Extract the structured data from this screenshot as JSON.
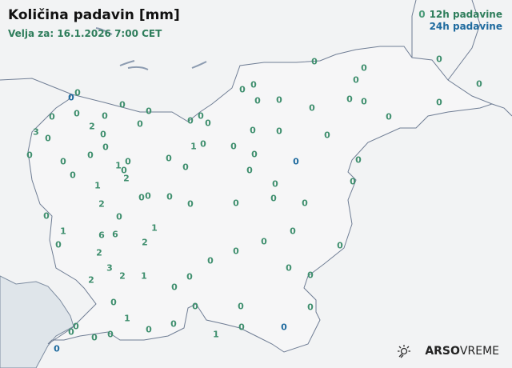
{
  "header": {
    "title": "Količina padavin [mm]",
    "valid_for": "Velja za: 16.1.2026 7:00 CET"
  },
  "legend": {
    "sample_value": "0",
    "item_12h": "12h padavine",
    "item_24h": "24h padavine",
    "color_12h": "#2e7d5b",
    "color_24h": "#1e6a9e"
  },
  "branding": {
    "logo_icon": "sun-cloud-icon",
    "brand_bold": "ARSO",
    "brand_light": "VREME"
  },
  "stations": [
    {
      "v": "0",
      "t": "24h"
    },
    {
      "v": "0",
      "t": "12h"
    },
    {
      "v": "0",
      "t": "12h"
    },
    {
      "v": "0",
      "t": "12h"
    },
    {
      "v": "0",
      "t": "12h"
    },
    {
      "v": "0",
      "t": "12h"
    },
    {
      "v": "3",
      "t": "12h"
    },
    {
      "v": "0",
      "t": "12h"
    },
    {
      "v": "2",
      "t": "12h"
    },
    {
      "v": "0",
      "t": "12h"
    },
    {
      "v": "0",
      "t": "12h"
    },
    {
      "v": "0",
      "t": "12h"
    },
    {
      "v": "0",
      "t": "12h"
    },
    {
      "v": "0",
      "t": "12h"
    },
    {
      "v": "0",
      "t": "12h"
    },
    {
      "v": "1",
      "t": "12h"
    },
    {
      "v": "0",
      "t": "12h"
    },
    {
      "v": "0",
      "t": "12h"
    },
    {
      "v": "2",
      "t": "12h"
    },
    {
      "v": "1",
      "t": "12h"
    },
    {
      "v": "0",
      "t": "12h"
    },
    {
      "v": "0",
      "t": "12h"
    },
    {
      "v": "0",
      "t": "12h"
    },
    {
      "v": "0",
      "t": "12h"
    },
    {
      "v": "0",
      "t": "12h"
    },
    {
      "v": "1",
      "t": "12h"
    },
    {
      "v": "0",
      "t": "12h"
    },
    {
      "v": "0",
      "t": "12h"
    },
    {
      "v": "0",
      "t": "12h"
    },
    {
      "v": "2",
      "t": "12h"
    },
    {
      "v": "0",
      "t": "12h"
    },
    {
      "v": "0",
      "t": "12h"
    },
    {
      "v": "0",
      "t": "12h"
    },
    {
      "v": "0",
      "t": "12h"
    },
    {
      "v": "0",
      "t": "12h"
    },
    {
      "v": "0",
      "t": "12h"
    },
    {
      "v": "1",
      "t": "12h"
    },
    {
      "v": "0",
      "t": "12h"
    },
    {
      "v": "6",
      "t": "12h"
    },
    {
      "v": "6",
      "t": "12h"
    },
    {
      "v": "1",
      "t": "12h"
    },
    {
      "v": "2",
      "t": "12h"
    },
    {
      "v": "2",
      "t": "12h"
    },
    {
      "v": "3",
      "t": "12h"
    },
    {
      "v": "2",
      "t": "12h"
    },
    {
      "v": "2",
      "t": "12h"
    },
    {
      "v": "1",
      "t": "12h"
    },
    {
      "v": "0",
      "t": "12h"
    },
    {
      "v": "0",
      "t": "12h"
    },
    {
      "v": "0",
      "t": "12h"
    },
    {
      "v": "0",
      "t": "12h"
    },
    {
      "v": "0",
      "t": "12h"
    },
    {
      "v": "0",
      "t": "12h"
    },
    {
      "v": "1",
      "t": "12h"
    },
    {
      "v": "0",
      "t": "12h"
    },
    {
      "v": "0",
      "t": "12h"
    },
    {
      "v": "0",
      "t": "12h"
    },
    {
      "v": "0",
      "t": "12h"
    },
    {
      "v": "0",
      "t": "12h"
    },
    {
      "v": "0",
      "t": "12h"
    },
    {
      "v": "0",
      "t": "12h"
    },
    {
      "v": "0",
      "t": "24h"
    },
    {
      "v": "1",
      "t": "12h"
    },
    {
      "v": "0",
      "t": "12h"
    },
    {
      "v": "0",
      "t": "12h"
    },
    {
      "v": "0",
      "t": "24h"
    },
    {
      "v": "0",
      "t": "12h"
    },
    {
      "v": "0",
      "t": "12h"
    },
    {
      "v": "0",
      "t": "12h"
    },
    {
      "v": "0",
      "t": "12h"
    },
    {
      "v": "0",
      "t": "12h"
    },
    {
      "v": "0",
      "t": "12h"
    },
    {
      "v": "0",
      "t": "12h"
    },
    {
      "v": "0",
      "t": "12h"
    },
    {
      "v": "0",
      "t": "12h"
    },
    {
      "v": "0",
      "t": "12h"
    },
    {
      "v": "0",
      "t": "12h"
    },
    {
      "v": "0",
      "t": "12h"
    },
    {
      "v": "0",
      "t": "24h"
    },
    {
      "v": "0",
      "t": "12h"
    },
    {
      "v": "0",
      "t": "12h"
    },
    {
      "v": "0",
      "t": "12h"
    },
    {
      "v": "0",
      "t": "12h"
    },
    {
      "v": "0",
      "t": "12h"
    },
    {
      "v": "0",
      "t": "12h"
    },
    {
      "v": "0",
      "t": "12h"
    },
    {
      "v": "0",
      "t": "12h"
    },
    {
      "v": "0",
      "t": "12h"
    },
    {
      "v": "0",
      "t": "12h"
    },
    {
      "v": "0",
      "t": "12h"
    },
    {
      "v": "0",
      "t": "12h"
    },
    {
      "v": "0",
      "t": "12h"
    },
    {
      "v": "0",
      "t": "12h"
    },
    {
      "v": "0",
      "t": "12h"
    },
    {
      "v": "0",
      "t": "12h"
    },
    {
      "v": "0",
      "t": "12h"
    },
    {
      "v": "0",
      "t": "12h"
    },
    {
      "v": "0",
      "t": "12h"
    }
  ]
}
